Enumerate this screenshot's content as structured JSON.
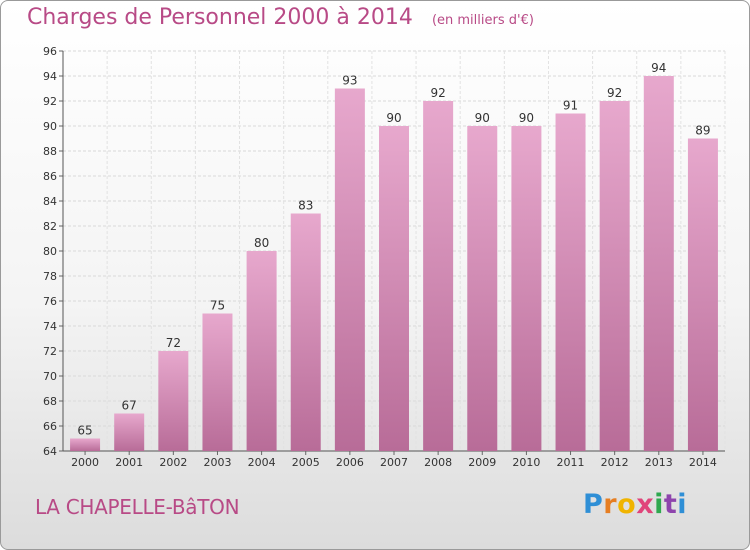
{
  "title": "Charges de Personnel 2000 à 2014",
  "unit": "(en milliers d'€)",
  "commune": "LA CHAPELLE-BâTON",
  "brand": {
    "letters": [
      "P",
      "r",
      "o",
      "x",
      "i",
      "t",
      "i"
    ],
    "colors": [
      "#2f8fd6",
      "#e67e22",
      "#f0b400",
      "#e0457b",
      "#2fa84f",
      "#8e44ad",
      "#2f8fd6"
    ]
  },
  "colors": {
    "bar_top": "#e7a8cd",
    "bar_bottom": "#b86c98",
    "title": "#b84a86"
  },
  "chart_data": {
    "type": "bar",
    "title": "Charges de Personnel 2000 à 2014",
    "categories": [
      "2000",
      "2001",
      "2002",
      "2003",
      "2004",
      "2005",
      "2006",
      "2007",
      "2008",
      "2009",
      "2010",
      "2011",
      "2012",
      "2013",
      "2014"
    ],
    "values": [
      65,
      67,
      72,
      75,
      80,
      83,
      93,
      90,
      92,
      90,
      90,
      91,
      92,
      94,
      89
    ],
    "ylim": [
      64,
      96
    ],
    "yticks": [
      64,
      66,
      68,
      70,
      72,
      74,
      76,
      78,
      80,
      82,
      84,
      86,
      88,
      90,
      92,
      94,
      96
    ],
    "grid": true,
    "xlabel": "",
    "ylabel": ""
  }
}
